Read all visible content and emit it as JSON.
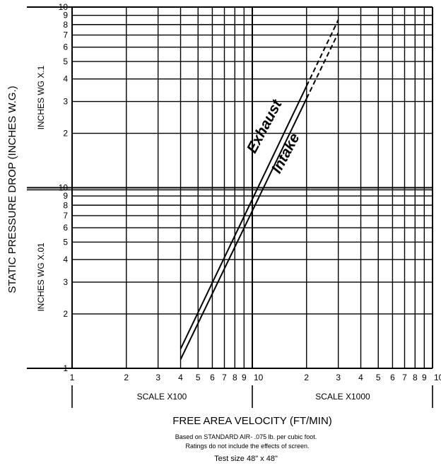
{
  "chart_data": {
    "type": "line",
    "x_scale": "log",
    "y_scale": "log",
    "xlim": [
      100,
      10000
    ],
    "ylim": [
      0.01,
      1
    ],
    "x_tick_labels": [
      "1",
      "2",
      "3",
      "4",
      "5",
      "6",
      "7",
      "8",
      "9",
      "10",
      "2",
      "3",
      "4",
      "5",
      "6",
      "7",
      "8",
      "9",
      "10"
    ],
    "y_tick_labels_upper": [
      "10",
      "9",
      "8",
      "7",
      "6",
      "5",
      "4",
      "3",
      "2"
    ],
    "y_tick_labels_lower": [
      "10",
      "9",
      "8",
      "7",
      "6",
      "5",
      "4",
      "3",
      "2",
      "1"
    ],
    "xlabel": "FREE AREA VELOCITY (FT/MIN)",
    "ylabel": "STATIC PRESSURE DROP (INCHES W.G.)",
    "y_sublabel_upper": "INCHES WG X.1",
    "y_sublabel_lower": "INCHES WG X.01",
    "x_sublabel_left": "SCALE X100",
    "x_sublabel_right": "SCALE X1000",
    "grid": true,
    "series": [
      {
        "name": "Exhaust",
        "points": [
          {
            "x": 400,
            "y": 0.0128
          },
          {
            "x": 3000,
            "y": 0.85
          }
        ],
        "dashed_from_x": 2000
      },
      {
        "name": "Intake",
        "points": [
          {
            "x": 400,
            "y": 0.0112
          },
          {
            "x": 3000,
            "y": 0.72
          }
        ],
        "dashed_from_x": 2000
      }
    ],
    "notes": [
      "Based on STANDARD AIR- .075 lb. per cubic foot.",
      "Ratings do not include the effects of screen."
    ],
    "test_size": "Test size 48\" x 48\""
  }
}
